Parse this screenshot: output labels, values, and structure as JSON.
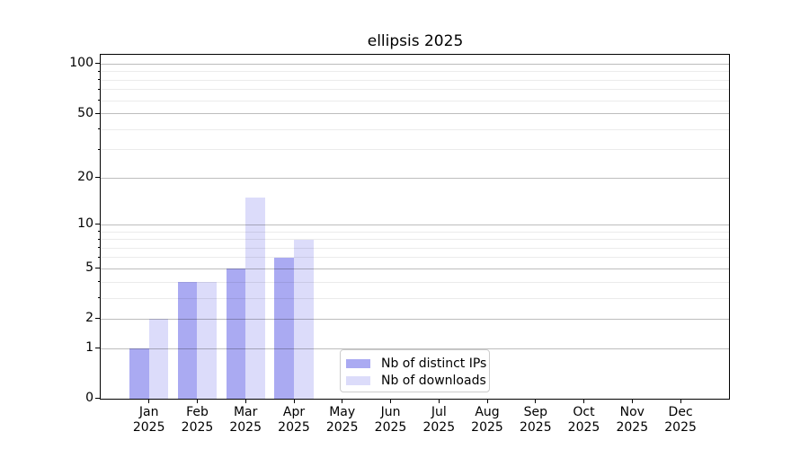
{
  "chart_data": {
    "type": "bar",
    "title": "ellipsis 2025",
    "categories": [
      "Jan",
      "Feb",
      "Mar",
      "Apr",
      "May",
      "Jun",
      "Jul",
      "Aug",
      "Sep",
      "Oct",
      "Nov",
      "Dec"
    ],
    "x_year_label": "2025",
    "series": [
      {
        "name": "Nb of distinct IPs",
        "color": "#aaaaf2",
        "values": [
          1,
          4,
          5,
          6,
          0,
          0,
          0,
          0,
          0,
          0,
          0,
          0
        ]
      },
      {
        "name": "Nb of downloads",
        "color": "#dcdcfa",
        "values": [
          2,
          4,
          15,
          8,
          0,
          0,
          0,
          0,
          0,
          0,
          0,
          0
        ]
      }
    ],
    "xlabel": "",
    "ylabel": "",
    "yscale": "log1p",
    "y_major_ticks": [
      0,
      1,
      2,
      5,
      10,
      20,
      50,
      100
    ],
    "y_minor_ticks": [
      3,
      4,
      6,
      7,
      8,
      9,
      30,
      40,
      60,
      70,
      80,
      90
    ],
    "ylim": [
      0,
      113
    ],
    "grid": true,
    "legend_position": "lower center"
  },
  "colors": {
    "major_grid": "rgba(0,0,0,0.26)",
    "minor_grid": "rgba(0,0,0,0.08)",
    "axis": "#000000",
    "legend_border": "#cccccc",
    "background": "#ffffff"
  }
}
